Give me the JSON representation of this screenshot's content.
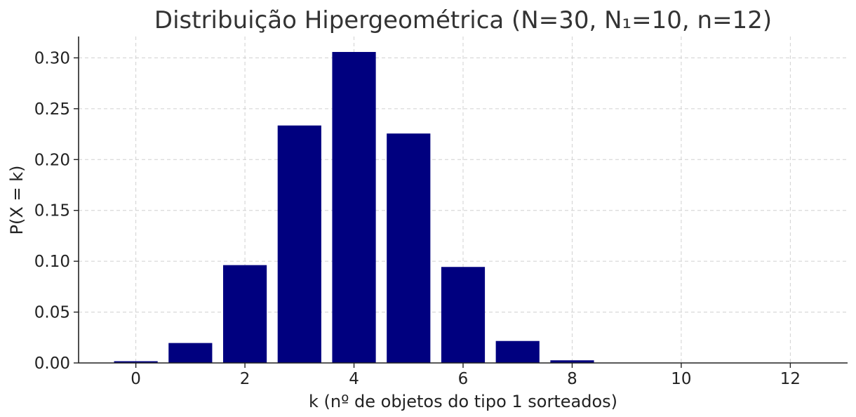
{
  "chart_data": {
    "type": "bar",
    "title": "Distribuição Hipergeométrica (N=30, N₁=10, n=12)",
    "xlabel": "k (nº de objetos do tipo 1 sorteados)",
    "ylabel": "P(X = k)",
    "x": [
      0,
      1,
      2,
      3,
      4,
      5,
      6,
      7,
      8,
      9,
      10
    ],
    "values": [
      0.0017,
      0.0196,
      0.0962,
      0.2335,
      0.3058,
      0.2256,
      0.0944,
      0.0216,
      0.0026,
      0.0001,
      0.0
    ],
    "xticks": [
      "0",
      "2",
      "4",
      "6",
      "8",
      "10",
      "12"
    ],
    "yticks": [
      "0.00",
      "0.05",
      "0.10",
      "0.15",
      "0.20",
      "0.25",
      "0.30"
    ],
    "xlim": [
      -1.05,
      13.05
    ],
    "ylim": [
      0,
      0.321
    ],
    "grid": true,
    "colors": {
      "bar": "#00007f"
    }
  }
}
